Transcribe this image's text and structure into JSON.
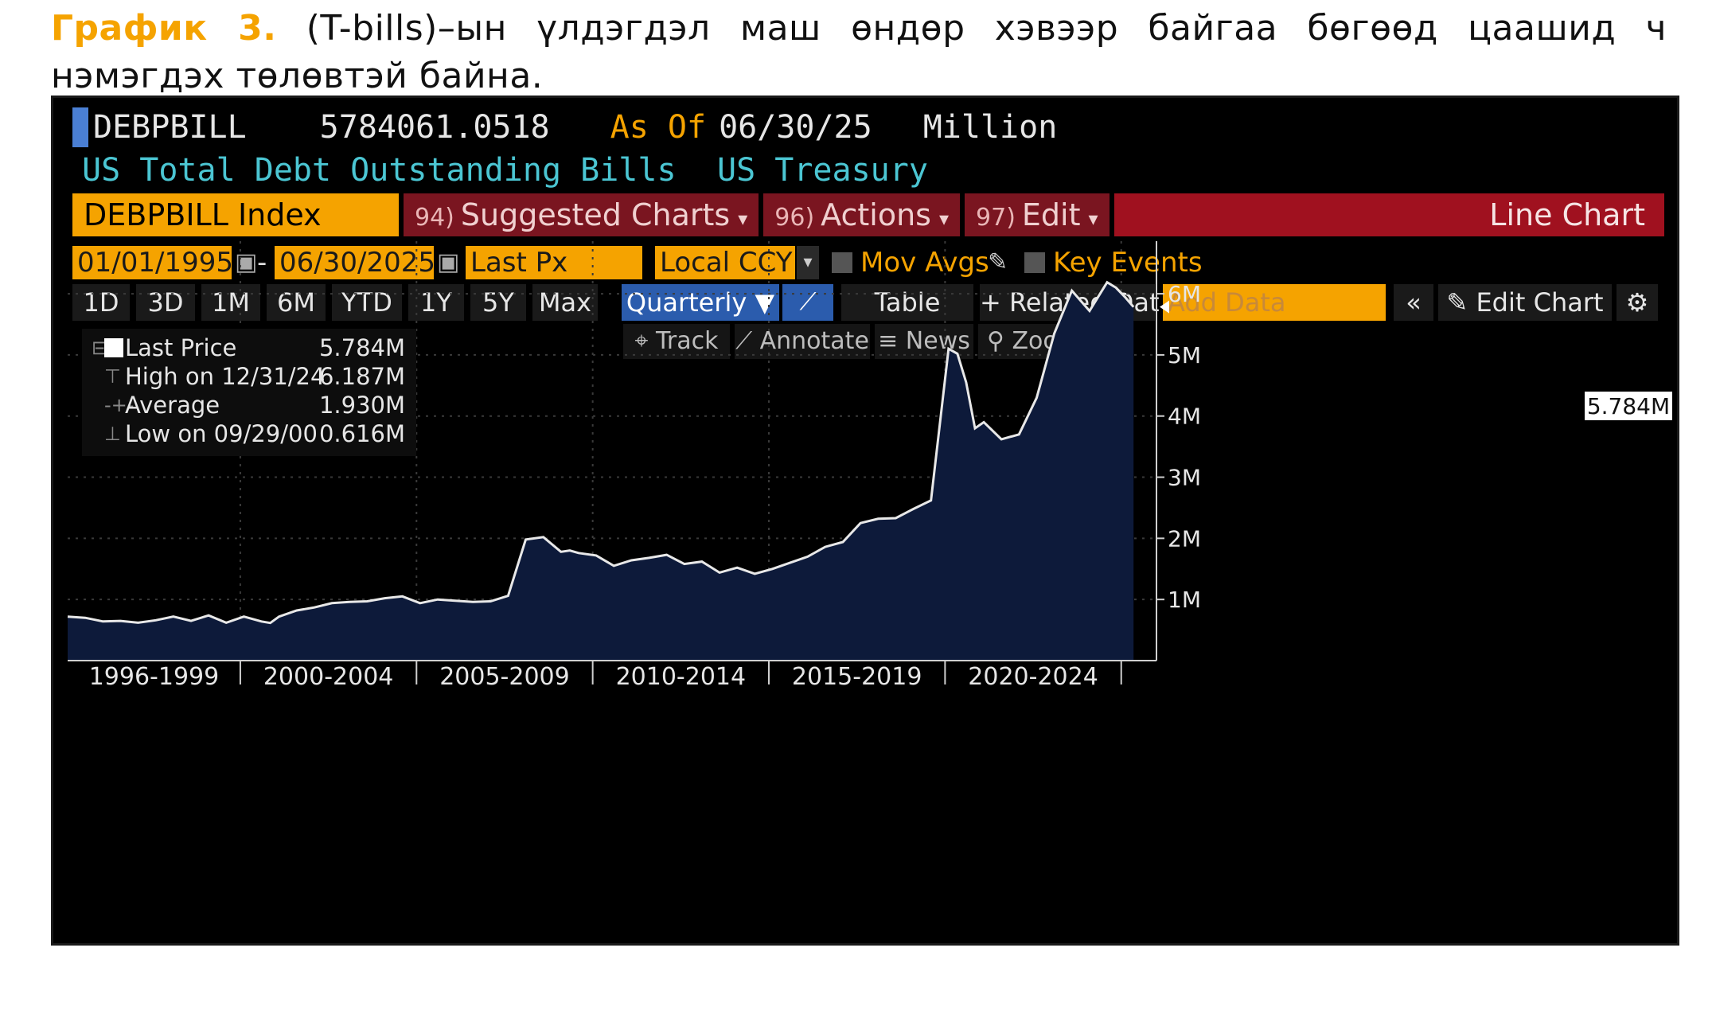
{
  "caption": {
    "label": "График 3.",
    "text": " (T-bills)–ын үлдэгдэл маш өндөр хэвээр байгаа бөгөөд цаашид ч нэмэгдэх төлөвтэй байна."
  },
  "header": {
    "ticker": "DEBPBILL",
    "value": "5784061.0518",
    "as_of_label": "As Of",
    "as_of_date": "06/30/25",
    "unit": "Million",
    "description": "US Total Debt Outstanding Bills",
    "source": "US Treasury"
  },
  "toolbar": {
    "ticker_field": "DEBPBILL Index",
    "suggested_num": "94)",
    "suggested": "Suggested Charts",
    "actions_num": "96)",
    "actions": "Actions",
    "edit_num": "97)",
    "edit": "Edit",
    "chart_type": "Line Chart"
  },
  "controls": {
    "start_date": "01/01/1995",
    "dash": "-",
    "end_date": "06/30/2025",
    "field": "Last Px",
    "currency": "Local CCY",
    "mov_avgs": "Mov Avgs",
    "key_events": "Key Events"
  },
  "periods": {
    "p1d": "1D",
    "p3d": "3D",
    "p1m": "1M",
    "p6m": "6M",
    "pytd": "YTD",
    "p1y": "1Y",
    "p5y": "5Y",
    "pmax": "Max",
    "freq": "Quarterly ▼",
    "table": "Table",
    "related": "+ Related Dat",
    "add_data": "Add Data",
    "collapse": "«",
    "edit_chart": "✎ Edit Chart",
    "gear": "⚙"
  },
  "tools": {
    "track": "⌖ Track",
    "annotate": "⟋ Annotate",
    "news": "≡ News",
    "zoom": "⚲ Zoom"
  },
  "legend": {
    "last_label": "Last Price",
    "last_value": "5.784M",
    "high_label": "High on 12/31/24",
    "high_value": "6.187M",
    "avg_label": "Average",
    "avg_value": "1.930M",
    "low_label": "Low on 09/29/00",
    "low_value": "0.616M"
  },
  "colors": {
    "accent": "#f5a300",
    "line": "#e8e8e8",
    "fill": "#0d1a3a",
    "grid": "#3a3a3a"
  },
  "chart_data": {
    "type": "area",
    "y_unit": "M",
    "ylim": [
      0,
      6.6
    ],
    "yticks": [
      1,
      2,
      3,
      4,
      5,
      6
    ],
    "ytick_labels": [
      "1M",
      "2M",
      "3M",
      "4M",
      "5M",
      "6M"
    ],
    "xlim": [
      1995.0,
      2025.9
    ],
    "period_labels": [
      "1996-1999",
      "2000-2004",
      "2005-2009",
      "2010-2014",
      "2015-2019",
      "2020-2024"
    ],
    "period_bounds": [
      1999.9,
      2004.9,
      2009.9,
      2014.9,
      2019.9,
      2024.9
    ],
    "last_value_label": "5.784M",
    "last_value": 5.784,
    "grid": true,
    "series": [
      {
        "x": [
          1995.0,
          1995.5,
          1996.0,
          1996.5,
          1997.0,
          1997.5,
          1998.0,
          1998.5,
          1999.0,
          1999.5,
          2000.0,
          2000.5,
          2000.75,
          2001.0,
          2001.5,
          2002.0,
          2002.5,
          2003.0,
          2003.5,
          2004.0,
          2004.5,
          2005.0,
          2005.5,
          2006.0,
          2006.5,
          2007.0,
          2007.5,
          2008.0,
          2008.5,
          2009.0,
          2009.25,
          2009.5,
          2010.0,
          2010.5,
          2011.0,
          2011.5,
          2012.0,
          2012.5,
          2013.0,
          2013.5,
          2014.0,
          2014.5,
          2015.0,
          2015.5,
          2016.0,
          2016.5,
          2017.0,
          2017.5,
          2018.0,
          2018.5,
          2019.0,
          2019.5,
          2020.0,
          2020.25,
          2020.5,
          2020.75,
          2021.0,
          2021.5,
          2022.0,
          2022.5,
          2023.0,
          2023.5,
          2024.0,
          2024.5,
          2024.75,
          2025.0,
          2025.25
        ],
        "y": [
          0.72,
          0.7,
          0.64,
          0.65,
          0.62,
          0.66,
          0.72,
          0.65,
          0.74,
          0.62,
          0.72,
          0.64,
          0.616,
          0.72,
          0.82,
          0.87,
          0.94,
          0.96,
          0.97,
          1.02,
          1.05,
          0.94,
          1.0,
          0.98,
          0.96,
          0.97,
          1.06,
          1.98,
          2.02,
          1.78,
          1.8,
          1.76,
          1.72,
          1.55,
          1.64,
          1.68,
          1.73,
          1.58,
          1.62,
          1.44,
          1.52,
          1.42,
          1.5,
          1.6,
          1.7,
          1.86,
          1.94,
          2.25,
          2.32,
          2.33,
          2.48,
          2.62,
          5.1,
          5.02,
          4.55,
          3.8,
          3.9,
          3.62,
          3.7,
          4.3,
          5.35,
          6.05,
          5.72,
          6.187,
          6.1,
          5.95,
          5.784
        ]
      }
    ]
  }
}
